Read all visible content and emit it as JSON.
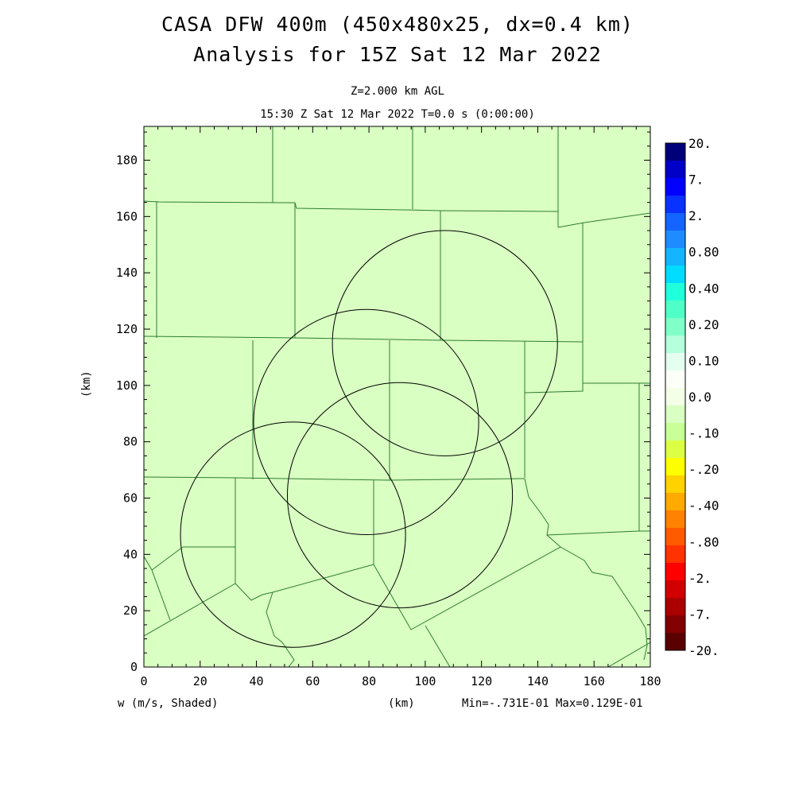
{
  "title": "CASA DFW 400m (450x480x25, dx=0.4 km)",
  "subtitle": "Analysis for 15Z Sat 12 Mar 2022",
  "level_text": "Z=2.000 km AGL",
  "time_text": "15:30 Z Sat 12 Mar 2022   T=0.0 s (0:00:00)",
  "ylabel": "(km)",
  "xlabel": "(km)",
  "variable_label": "w (m/s, Shaded)",
  "minmax_text": "Min=-.731E-01 Max=0.129E-01",
  "chart_data": {
    "type": "heatmap",
    "xlim": [
      0,
      180
    ],
    "ylim": [
      0,
      192
    ],
    "xticks": [
      0,
      20,
      40,
      60,
      80,
      100,
      120,
      140,
      160,
      180
    ],
    "yticks": [
      0,
      20,
      40,
      60,
      80,
      100,
      120,
      140,
      160,
      180
    ],
    "field": "w",
    "dominant_class": "0.0 to -.10",
    "min": -0.0731,
    "max": 0.0129,
    "radar_circles": [
      {
        "cx": 107,
        "cy": 115,
        "r": 40
      },
      {
        "cx": 79,
        "cy": 87,
        "r": 40
      },
      {
        "cx": 91,
        "cy": 61,
        "r": 40
      },
      {
        "cx": 53,
        "cy": 47,
        "r": 40
      }
    ],
    "colorbar": {
      "labels": [
        "20.",
        "7.",
        "2.",
        "0.80",
        "0.40",
        "0.20",
        "0.10",
        "0.0",
        "-.10",
        "-.20",
        "-.40",
        "-.80",
        "-2.",
        "-7.",
        "-20."
      ],
      "colors": [
        "#00007a",
        "#0000c8",
        "#0000ff",
        "#0a32ff",
        "#1464ff",
        "#1e8cff",
        "#14b4ff",
        "#00dcff",
        "#20ffdc",
        "#50ffc8",
        "#80ffc8",
        "#b4ffdc",
        "#e4fff0",
        "#fbfff8",
        "#f4ffe8",
        "#d9ffc2",
        "#c8ff96",
        "#dcff46",
        "#ffff00",
        "#ffd200",
        "#ffaa00",
        "#ff8200",
        "#ff5a00",
        "#ff3200",
        "#ff0000",
        "#d20000",
        "#aa0000",
        "#820000",
        "#5a0000"
      ]
    }
  }
}
